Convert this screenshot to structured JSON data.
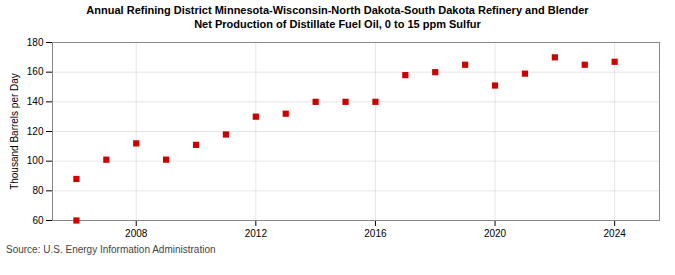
{
  "chart_data": {
    "type": "scatter",
    "title": "Annual Refining District Minnesota-Wisconsin-North Dakota-South Dakota Refinery and Blender\nNet Production of Distillate Fuel Oil, 0 to 15 ppm Sulfur",
    "ylabel": "Thousand Barrels per Day",
    "source": "Source: U.S. Energy Information Administration",
    "x": [
      2006,
      2007,
      2008,
      2009,
      2010,
      2011,
      2012,
      2013,
      2014,
      2015,
      2016,
      2017,
      2018,
      2019,
      2020,
      2021,
      2022,
      2023,
      2024,
      2006
    ],
    "values": [
      88,
      101,
      112,
      101,
      111,
      118,
      130,
      132,
      140,
      140,
      140,
      158,
      160,
      165,
      151,
      159,
      170,
      165,
      167,
      60
    ],
    "color": "#cc0000",
    "marker": "square",
    "xlim": [
      2005.2,
      2025.5
    ],
    "xticks": [
      2008,
      2012,
      2016,
      2020,
      2024
    ],
    "ylim": [
      60,
      180
    ],
    "yticks": [
      60,
      80,
      100,
      120,
      140,
      160,
      180
    ],
    "grid": true
  }
}
